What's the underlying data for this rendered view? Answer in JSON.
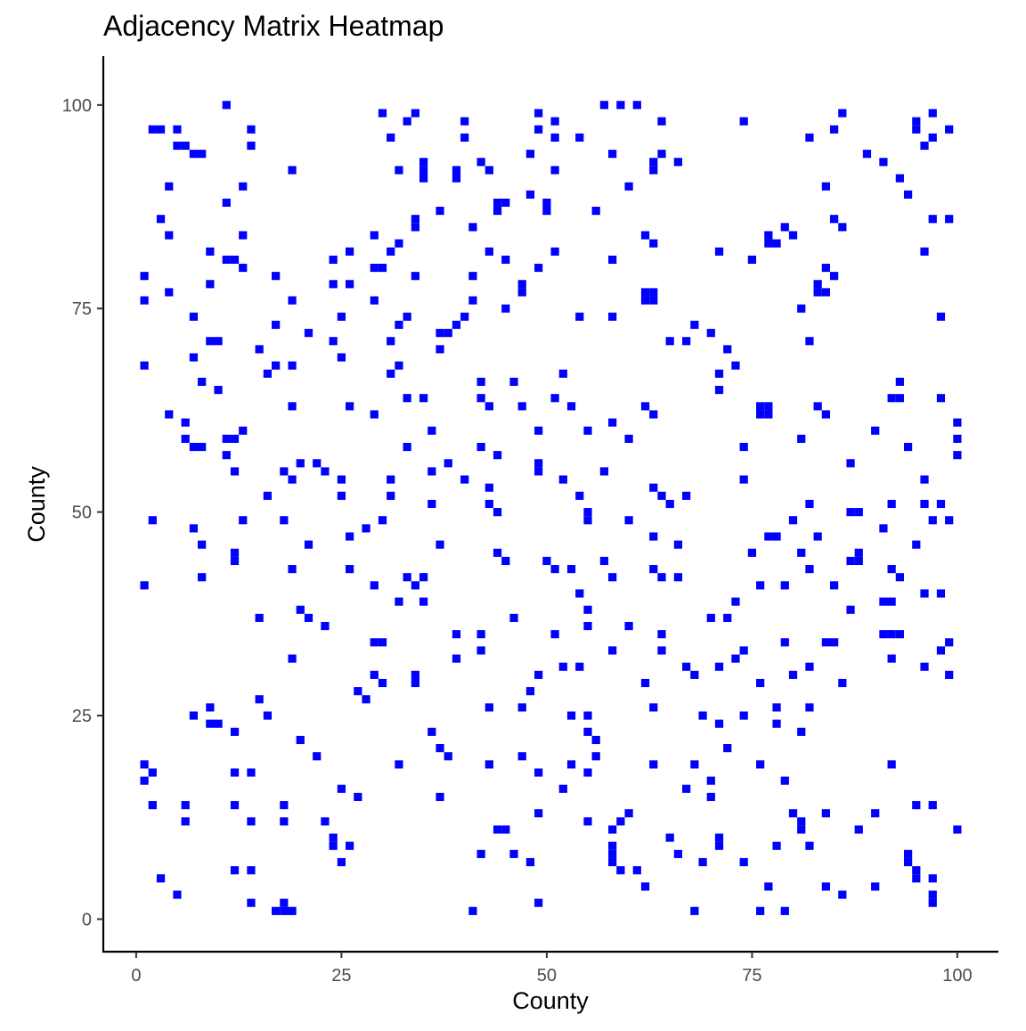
{
  "chart_data": {
    "type": "heatmap",
    "title": "Adjacency Matrix Heatmap",
    "xlabel": "County",
    "ylabel": "County",
    "xlim": [
      -4,
      105
    ],
    "ylim": [
      -4,
      106
    ],
    "x_ticks": [
      0,
      25,
      50,
      75,
      100
    ],
    "y_ticks": [
      0,
      25,
      50,
      75,
      100
    ],
    "grid": false,
    "legend": "none",
    "cell_color": "#0000ff",
    "background_color": "#ffffff",
    "cells": [
      [
        11,
        100
      ],
      [
        57,
        100
      ],
      [
        59,
        100
      ],
      [
        61,
        100
      ],
      [
        30,
        99
      ],
      [
        34,
        99
      ],
      [
        49,
        99
      ],
      [
        86,
        99
      ],
      [
        97,
        99
      ],
      [
        33,
        98
      ],
      [
        40,
        98
      ],
      [
        51,
        98
      ],
      [
        64,
        98
      ],
      [
        74,
        98
      ],
      [
        95,
        98
      ],
      [
        2,
        97
      ],
      [
        3,
        97
      ],
      [
        5,
        97
      ],
      [
        14,
        97
      ],
      [
        49,
        97
      ],
      [
        85,
        97
      ],
      [
        95,
        97
      ],
      [
        99,
        97
      ],
      [
        31,
        96
      ],
      [
        40,
        96
      ],
      [
        51,
        96
      ],
      [
        54,
        96
      ],
      [
        82,
        96
      ],
      [
        97,
        96
      ],
      [
        5,
        95
      ],
      [
        6,
        95
      ],
      [
        14,
        95
      ],
      [
        96,
        95
      ],
      [
        7,
        94
      ],
      [
        8,
        94
      ],
      [
        48,
        94
      ],
      [
        58,
        94
      ],
      [
        64,
        94
      ],
      [
        89,
        94
      ],
      [
        35,
        93
      ],
      [
        42,
        93
      ],
      [
        63,
        93
      ],
      [
        66,
        93
      ],
      [
        91,
        93
      ],
      [
        19,
        92
      ],
      [
        32,
        92
      ],
      [
        35,
        92
      ],
      [
        39,
        92
      ],
      [
        43,
        92
      ],
      [
        51,
        92
      ],
      [
        63,
        92
      ],
      [
        35,
        91
      ],
      [
        39,
        91
      ],
      [
        93,
        91
      ],
      [
        4,
        90
      ],
      [
        13,
        90
      ],
      [
        60,
        90
      ],
      [
        84,
        90
      ],
      [
        48,
        89
      ],
      [
        94,
        89
      ],
      [
        11,
        88
      ],
      [
        44,
        88
      ],
      [
        45,
        88
      ],
      [
        50,
        88
      ],
      [
        37,
        87
      ],
      [
        44,
        87
      ],
      [
        50,
        87
      ],
      [
        56,
        87
      ],
      [
        3,
        86
      ],
      [
        34,
        86
      ],
      [
        85,
        86
      ],
      [
        97,
        86
      ],
      [
        99,
        86
      ],
      [
        34,
        85
      ],
      [
        41,
        85
      ],
      [
        79,
        85
      ],
      [
        86,
        85
      ],
      [
        4,
        84
      ],
      [
        13,
        84
      ],
      [
        29,
        84
      ],
      [
        62,
        84
      ],
      [
        77,
        84
      ],
      [
        80,
        84
      ],
      [
        32,
        83
      ],
      [
        63,
        83
      ],
      [
        77,
        83
      ],
      [
        78,
        83
      ],
      [
        9,
        82
      ],
      [
        26,
        82
      ],
      [
        31,
        82
      ],
      [
        43,
        82
      ],
      [
        51,
        82
      ],
      [
        71,
        82
      ],
      [
        96,
        82
      ],
      [
        11,
        81
      ],
      [
        12,
        81
      ],
      [
        24,
        81
      ],
      [
        45,
        81
      ],
      [
        58,
        81
      ],
      [
        75,
        81
      ],
      [
        13,
        80
      ],
      [
        29,
        80
      ],
      [
        30,
        80
      ],
      [
        49,
        80
      ],
      [
        84,
        80
      ],
      [
        1,
        79
      ],
      [
        17,
        79
      ],
      [
        34,
        79
      ],
      [
        41,
        79
      ],
      [
        85,
        79
      ],
      [
        9,
        78
      ],
      [
        24,
        78
      ],
      [
        26,
        78
      ],
      [
        47,
        78
      ],
      [
        83,
        78
      ],
      [
        4,
        77
      ],
      [
        47,
        77
      ],
      [
        62,
        77
      ],
      [
        63,
        77
      ],
      [
        83,
        77
      ],
      [
        84,
        77
      ],
      [
        1,
        76
      ],
      [
        19,
        76
      ],
      [
        29,
        76
      ],
      [
        41,
        76
      ],
      [
        62,
        76
      ],
      [
        63,
        76
      ],
      [
        45,
        75
      ],
      [
        81,
        75
      ],
      [
        7,
        74
      ],
      [
        25,
        74
      ],
      [
        33,
        74
      ],
      [
        40,
        74
      ],
      [
        54,
        74
      ],
      [
        58,
        74
      ],
      [
        98,
        74
      ],
      [
        17,
        73
      ],
      [
        32,
        73
      ],
      [
        39,
        73
      ],
      [
        68,
        73
      ],
      [
        21,
        72
      ],
      [
        37,
        72
      ],
      [
        38,
        72
      ],
      [
        70,
        72
      ],
      [
        9,
        71
      ],
      [
        10,
        71
      ],
      [
        24,
        71
      ],
      [
        31,
        71
      ],
      [
        65,
        71
      ],
      [
        67,
        71
      ],
      [
        82,
        71
      ],
      [
        15,
        70
      ],
      [
        37,
        70
      ],
      [
        72,
        70
      ],
      [
        7,
        69
      ],
      [
        25,
        69
      ],
      [
        1,
        68
      ],
      [
        17,
        68
      ],
      [
        19,
        68
      ],
      [
        32,
        68
      ],
      [
        73,
        68
      ],
      [
        16,
        67
      ],
      [
        31,
        67
      ],
      [
        52,
        67
      ],
      [
        71,
        67
      ],
      [
        8,
        66
      ],
      [
        42,
        66
      ],
      [
        46,
        66
      ],
      [
        93,
        66
      ],
      [
        10,
        65
      ],
      [
        71,
        65
      ],
      [
        33,
        64
      ],
      [
        35,
        64
      ],
      [
        42,
        64
      ],
      [
        51,
        64
      ],
      [
        92,
        64
      ],
      [
        93,
        64
      ],
      [
        98,
        64
      ],
      [
        19,
        63
      ],
      [
        26,
        63
      ],
      [
        43,
        63
      ],
      [
        47,
        63
      ],
      [
        53,
        63
      ],
      [
        62,
        63
      ],
      [
        76,
        63
      ],
      [
        77,
        63
      ],
      [
        83,
        63
      ],
      [
        4,
        62
      ],
      [
        29,
        62
      ],
      [
        63,
        62
      ],
      [
        76,
        62
      ],
      [
        77,
        62
      ],
      [
        84,
        62
      ],
      [
        6,
        61
      ],
      [
        58,
        61
      ],
      [
        100,
        61
      ],
      [
        13,
        60
      ],
      [
        36,
        60
      ],
      [
        49,
        60
      ],
      [
        55,
        60
      ],
      [
        90,
        60
      ],
      [
        6,
        59
      ],
      [
        11,
        59
      ],
      [
        12,
        59
      ],
      [
        60,
        59
      ],
      [
        81,
        59
      ],
      [
        100,
        59
      ],
      [
        7,
        58
      ],
      [
        8,
        58
      ],
      [
        33,
        58
      ],
      [
        42,
        58
      ],
      [
        74,
        58
      ],
      [
        94,
        58
      ],
      [
        11,
        57
      ],
      [
        44,
        57
      ],
      [
        100,
        57
      ],
      [
        20,
        56
      ],
      [
        22,
        56
      ],
      [
        38,
        56
      ],
      [
        49,
        56
      ],
      [
        87,
        56
      ],
      [
        12,
        55
      ],
      [
        18,
        55
      ],
      [
        23,
        55
      ],
      [
        36,
        55
      ],
      [
        49,
        55
      ],
      [
        57,
        55
      ],
      [
        19,
        54
      ],
      [
        25,
        54
      ],
      [
        31,
        54
      ],
      [
        40,
        54
      ],
      [
        52,
        54
      ],
      [
        74,
        54
      ],
      [
        96,
        54
      ],
      [
        43,
        53
      ],
      [
        63,
        53
      ],
      [
        16,
        52
      ],
      [
        25,
        52
      ],
      [
        31,
        52
      ],
      [
        54,
        52
      ],
      [
        64,
        52
      ],
      [
        67,
        52
      ],
      [
        36,
        51
      ],
      [
        43,
        51
      ],
      [
        65,
        51
      ],
      [
        82,
        51
      ],
      [
        92,
        51
      ],
      [
        96,
        51
      ],
      [
        98,
        51
      ],
      [
        44,
        50
      ],
      [
        55,
        50
      ],
      [
        87,
        50
      ],
      [
        88,
        50
      ],
      [
        2,
        49
      ],
      [
        13,
        49
      ],
      [
        18,
        49
      ],
      [
        30,
        49
      ],
      [
        55,
        49
      ],
      [
        60,
        49
      ],
      [
        80,
        49
      ],
      [
        97,
        49
      ],
      [
        99,
        49
      ],
      [
        7,
        48
      ],
      [
        28,
        48
      ],
      [
        91,
        48
      ],
      [
        26,
        47
      ],
      [
        63,
        47
      ],
      [
        77,
        47
      ],
      [
        78,
        47
      ],
      [
        83,
        47
      ],
      [
        8,
        46
      ],
      [
        21,
        46
      ],
      [
        37,
        46
      ],
      [
        66,
        46
      ],
      [
        95,
        46
      ],
      [
        12,
        45
      ],
      [
        44,
        45
      ],
      [
        75,
        45
      ],
      [
        81,
        45
      ],
      [
        88,
        45
      ],
      [
        12,
        44
      ],
      [
        45,
        44
      ],
      [
        50,
        44
      ],
      [
        57,
        44
      ],
      [
        87,
        44
      ],
      [
        88,
        44
      ],
      [
        19,
        43
      ],
      [
        26,
        43
      ],
      [
        51,
        43
      ],
      [
        53,
        43
      ],
      [
        63,
        43
      ],
      [
        82,
        43
      ],
      [
        92,
        43
      ],
      [
        8,
        42
      ],
      [
        33,
        42
      ],
      [
        35,
        42
      ],
      [
        58,
        42
      ],
      [
        64,
        42
      ],
      [
        66,
        42
      ],
      [
        93,
        42
      ],
      [
        1,
        41
      ],
      [
        29,
        41
      ],
      [
        34,
        41
      ],
      [
        76,
        41
      ],
      [
        79,
        41
      ],
      [
        85,
        41
      ],
      [
        54,
        40
      ],
      [
        96,
        40
      ],
      [
        98,
        40
      ],
      [
        32,
        39
      ],
      [
        35,
        39
      ],
      [
        73,
        39
      ],
      [
        91,
        39
      ],
      [
        92,
        39
      ],
      [
        20,
        38
      ],
      [
        55,
        38
      ],
      [
        87,
        38
      ],
      [
        15,
        37
      ],
      [
        21,
        37
      ],
      [
        46,
        37
      ],
      [
        70,
        37
      ],
      [
        72,
        37
      ],
      [
        23,
        36
      ],
      [
        55,
        36
      ],
      [
        60,
        36
      ],
      [
        39,
        35
      ],
      [
        42,
        35
      ],
      [
        51,
        35
      ],
      [
        64,
        35
      ],
      [
        91,
        35
      ],
      [
        92,
        35
      ],
      [
        93,
        35
      ],
      [
        29,
        34
      ],
      [
        30,
        34
      ],
      [
        79,
        34
      ],
      [
        84,
        34
      ],
      [
        85,
        34
      ],
      [
        99,
        34
      ],
      [
        42,
        33
      ],
      [
        58,
        33
      ],
      [
        64,
        33
      ],
      [
        74,
        33
      ],
      [
        98,
        33
      ],
      [
        19,
        32
      ],
      [
        39,
        32
      ],
      [
        73,
        32
      ],
      [
        92,
        32
      ],
      [
        52,
        31
      ],
      [
        54,
        31
      ],
      [
        67,
        31
      ],
      [
        71,
        31
      ],
      [
        82,
        31
      ],
      [
        96,
        31
      ],
      [
        29,
        30
      ],
      [
        34,
        30
      ],
      [
        49,
        30
      ],
      [
        68,
        30
      ],
      [
        80,
        30
      ],
      [
        99,
        30
      ],
      [
        30,
        29
      ],
      [
        34,
        29
      ],
      [
        62,
        29
      ],
      [
        76,
        29
      ],
      [
        86,
        29
      ],
      [
        27,
        28
      ],
      [
        48,
        28
      ],
      [
        15,
        27
      ],
      [
        28,
        27
      ],
      [
        9,
        26
      ],
      [
        43,
        26
      ],
      [
        47,
        26
      ],
      [
        63,
        26
      ],
      [
        78,
        26
      ],
      [
        82,
        26
      ],
      [
        7,
        25
      ],
      [
        16,
        25
      ],
      [
        53,
        25
      ],
      [
        55,
        25
      ],
      [
        69,
        25
      ],
      [
        74,
        25
      ],
      [
        9,
        24
      ],
      [
        10,
        24
      ],
      [
        71,
        24
      ],
      [
        78,
        24
      ],
      [
        12,
        23
      ],
      [
        36,
        23
      ],
      [
        55,
        23
      ],
      [
        81,
        23
      ],
      [
        20,
        22
      ],
      [
        56,
        22
      ],
      [
        37,
        21
      ],
      [
        72,
        21
      ],
      [
        22,
        20
      ],
      [
        38,
        20
      ],
      [
        47,
        20
      ],
      [
        56,
        20
      ],
      [
        1,
        19
      ],
      [
        32,
        19
      ],
      [
        43,
        19
      ],
      [
        53,
        19
      ],
      [
        63,
        19
      ],
      [
        68,
        19
      ],
      [
        76,
        19
      ],
      [
        92,
        19
      ],
      [
        2,
        18
      ],
      [
        12,
        18
      ],
      [
        14,
        18
      ],
      [
        49,
        18
      ],
      [
        55,
        18
      ],
      [
        1,
        17
      ],
      [
        70,
        17
      ],
      [
        79,
        17
      ],
      [
        25,
        16
      ],
      [
        52,
        16
      ],
      [
        67,
        16
      ],
      [
        27,
        15
      ],
      [
        37,
        15
      ],
      [
        70,
        15
      ],
      [
        2,
        14
      ],
      [
        6,
        14
      ],
      [
        12,
        14
      ],
      [
        18,
        14
      ],
      [
        95,
        14
      ],
      [
        97,
        14
      ],
      [
        49,
        13
      ],
      [
        60,
        13
      ],
      [
        80,
        13
      ],
      [
        84,
        13
      ],
      [
        90,
        13
      ],
      [
        6,
        12
      ],
      [
        14,
        12
      ],
      [
        18,
        12
      ],
      [
        23,
        12
      ],
      [
        55,
        12
      ],
      [
        59,
        12
      ],
      [
        81,
        12
      ],
      [
        44,
        11
      ],
      [
        45,
        11
      ],
      [
        58,
        11
      ],
      [
        81,
        11
      ],
      [
        88,
        11
      ],
      [
        100,
        11
      ],
      [
        24,
        10
      ],
      [
        65,
        10
      ],
      [
        71,
        10
      ],
      [
        24,
        9
      ],
      [
        26,
        9
      ],
      [
        58,
        9
      ],
      [
        71,
        9
      ],
      [
        78,
        9
      ],
      [
        82,
        9
      ],
      [
        42,
        8
      ],
      [
        46,
        8
      ],
      [
        58,
        8
      ],
      [
        66,
        8
      ],
      [
        94,
        8
      ],
      [
        25,
        7
      ],
      [
        48,
        7
      ],
      [
        58,
        7
      ],
      [
        69,
        7
      ],
      [
        74,
        7
      ],
      [
        94,
        7
      ],
      [
        12,
        6
      ],
      [
        14,
        6
      ],
      [
        59,
        6
      ],
      [
        61,
        6
      ],
      [
        95,
        6
      ],
      [
        3,
        5
      ],
      [
        95,
        5
      ],
      [
        97,
        5
      ],
      [
        62,
        4
      ],
      [
        77,
        4
      ],
      [
        84,
        4
      ],
      [
        90,
        4
      ],
      [
        5,
        3
      ],
      [
        86,
        3
      ],
      [
        97,
        3
      ],
      [
        14,
        2
      ],
      [
        18,
        2
      ],
      [
        49,
        2
      ],
      [
        97,
        2
      ],
      [
        17,
        1
      ],
      [
        18,
        1
      ],
      [
        19,
        1
      ],
      [
        41,
        1
      ],
      [
        68,
        1
      ],
      [
        76,
        1
      ],
      [
        79,
        1
      ]
    ]
  }
}
